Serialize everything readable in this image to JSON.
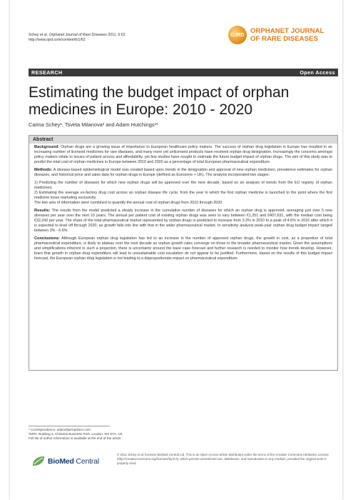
{
  "header": {
    "citation_prefix": "Schey et al.",
    "journal_italic": "Orphanet Journal of Rare Diseases",
    "citation_suffix": "2011, 6:62",
    "url": "http://www.ojrd.com/content/6/1/62",
    "logo_mark": "OJRD",
    "journal_line1": "ORPHANET JOURNAL",
    "journal_line2": "OF RARE DISEASES"
  },
  "bar": {
    "left": "RESEARCH",
    "right": "Open Access"
  },
  "title": "Estimating the budget impact of orphan medicines in Europe: 2010 - 2020",
  "authors": "Carina Schey¹, Tsveta Milanova² and Adam Hutchings²*",
  "abstract": {
    "heading": "Abstract",
    "background_label": "Background:",
    "background": "Orphan drugs are a growing issue of importance to European healthcare policy makers. The success of orphan drug legislation in Europe has resulted in an increasing number of licensed medicines for rare diseases, and many more yet unlicensed products have received orphan drug designation. Increasingly the concerns amongst policy makers relate to issues of patient access and affordability, yet few studies have sought to estimate the future budget impact of orphan drugs. The aim of this study was to predict the total cost of orphan medicines in Europe between 2010 and 2020 as a percentage of total European pharmaceutical expenditure.",
    "methods_label": "Methods:",
    "methods": "A disease-based epidemiological model was created based upon trends in the designation and approval of new orphan medicines, prevalence estimates for orphan diseases, and historical price and sales data for orphan drugs in Europe (defined as Eurozone + UK). The analysis incorporated two stages:",
    "stage1": "1) Predicting the number of diseases for which new orphan drugs will be approved over the next decade, based on an analysis of trends from the EU registry of orphan medicines;",
    "stage2": "2) Estimating the average ex-factory drug cost across an orphan disease life cycle, from the year in which the first orphan medicine is launched to the point where the first medicine loses marketing exclusivity.",
    "stage_combined": "The two sets of information were combined to quantify the annual cost of orphan drugs from 2010 through 2020.",
    "results_label": "Results:",
    "results": "The results from the model predicted a steady increase in the cumulative number of diseases for which an orphan drug is approved, averaging just over 5 new diseases per year over the next 10 years. The annual per patient cost of existing orphan drugs was seen to vary between €1,251 and €407,631, with the median cost being €32,242 per year. The share of the total pharmaceutical market represented by orphan drugs is predicted to increase from 3.3% in 2010 to a peak of 4.6% in 2016 after which it is expected to level off through 2020, as growth falls into line with that in the wider pharmaceutical market. In sensitivity analysis peak-year orphan drug budget impact ranged between 3% - 6.6%.",
    "conclusions_label": "Conclusions:",
    "conclusions": "Although European orphan drug legislation has led to an increase in the number of approved orphan drugs, the growth in cost, as a proportion of total pharmaceutical expenditure, is likely to plateau over the next decade as orphan growth rates converge on those in the broader pharmaceutical market. Given the assumptions and simplifications inherent in such a projection, there is uncertainty around the base case forecast and further research is needed to monitor how trends develop. However, fears that growth in orphan drug expenditure will lead to unsustainable cost escalation do not appear to be justified. Furthermore, based on the results of this budget impact forecast, the European orphan drug legislation is not leading to a disproportionate impact on pharmaceutical expenditure."
  },
  "footnotes": {
    "correspondence": "* Correspondence: adam@prmadvice.com",
    "affiliation": "²DRG, Building 3, Chiswick Business Park, London, W4 5YA, UK",
    "fulllist": "Full list of author information is available at the end of the article"
  },
  "publisher": {
    "brand_bold": "BioMed",
    "brand_regular": " Central"
  },
  "license": "© 2011 Schey et al; licensee BioMed Central Ltd. This is an Open Access article distributed under the terms of the Creative Commons Attribution License (http://creativecommons.org/licenses/by/2.0), which permits unrestricted use, distribution, and reproduction in any medium, provided the original work is properly cited.",
  "colors": {
    "journal_orange": "#e07a16",
    "bar": "#3a3a3a",
    "abstract_head": "#d9d9d9",
    "bmc_blue": "#1a3a6c",
    "bmc_green": "#6aa84f"
  }
}
